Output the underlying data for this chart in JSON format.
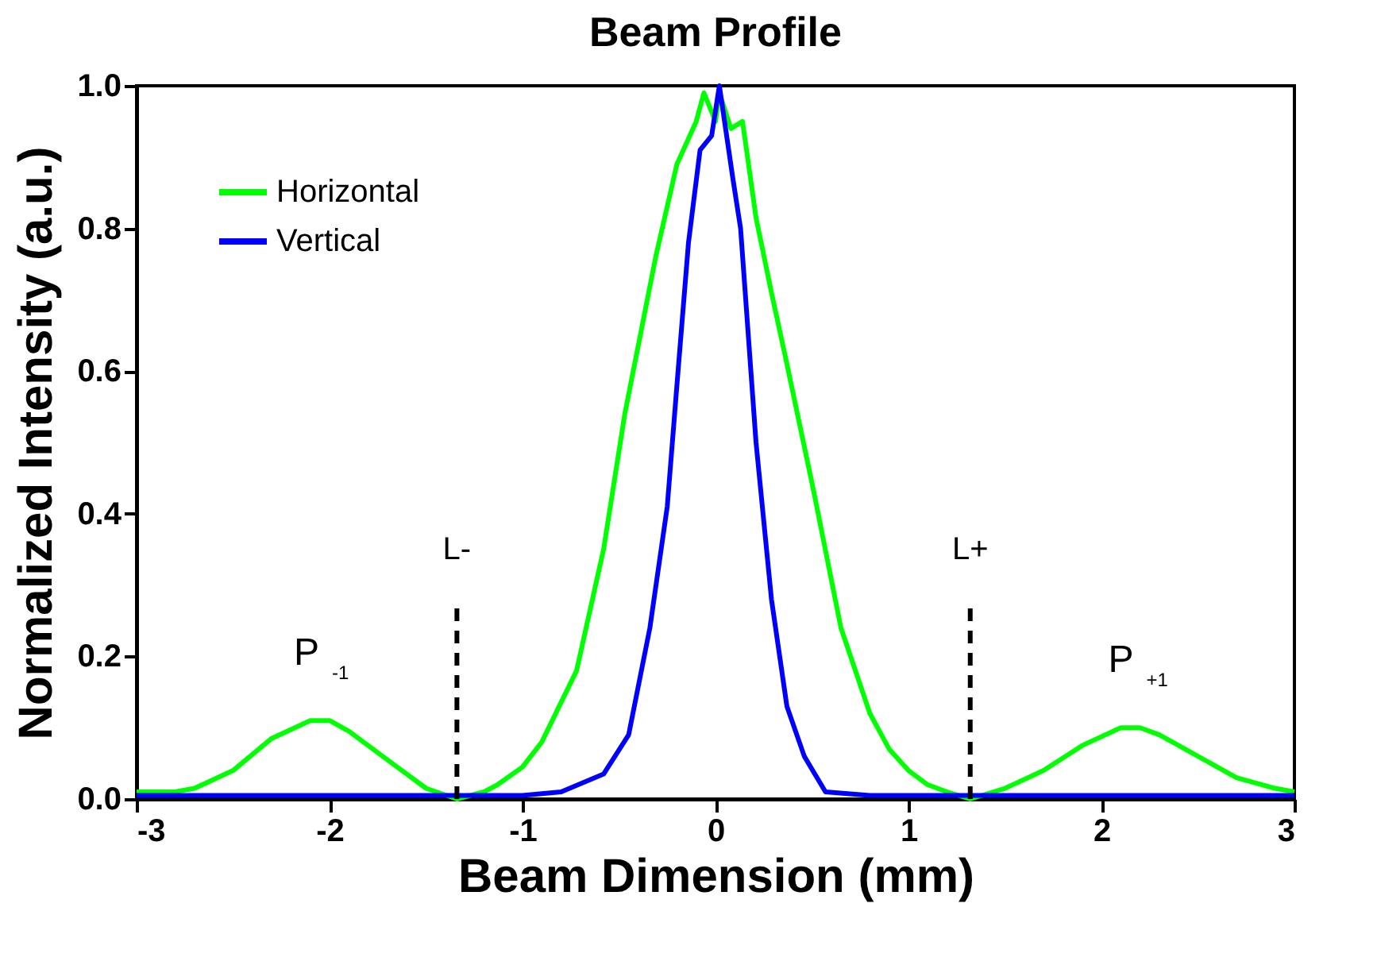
{
  "chart_data": {
    "type": "line",
    "title": "Beam Profile",
    "xlabel": "Beam Dimension (mm)",
    "ylabel": "Normalized Intensity (a.u.)",
    "xlim": [
      -3,
      3
    ],
    "ylim": [
      0,
      1
    ],
    "xticks": [
      -3,
      -2,
      -1,
      0,
      1,
      2,
      3
    ],
    "yticks": [
      {
        "value": 0,
        "label": "0.0"
      },
      0.2,
      0.4,
      0.6,
      0.8,
      {
        "value": 1,
        "label": "1.0"
      }
    ],
    "grid": false,
    "legend": "top left",
    "line_style": "solid",
    "marker": "none",
    "series": [
      {
        "name": "Horizontal",
        "color": "#00ff00",
        "x": [
          -3,
          -2.8,
          -2.7,
          -2.5,
          -2.3,
          -2.1,
          -2.0,
          -1.9,
          -1.7,
          -1.5,
          -1.34,
          -1.2,
          -1.13,
          -1.0,
          -0.9,
          -0.72,
          -0.58,
          -0.47,
          -0.39,
          -0.31,
          -0.2,
          -0.1,
          -0.06,
          0,
          0.02,
          0.08,
          0.14,
          0.21,
          0.29,
          0.37,
          0.51,
          0.65,
          0.8,
          0.9,
          1.0,
          1.1,
          1.2,
          1.32,
          1.5,
          1.7,
          1.9,
          2.1,
          2.2,
          2.3,
          2.5,
          2.7,
          2.9,
          3
        ],
        "values": [
          0.01,
          0.01,
          0.015,
          0.04,
          0.085,
          0.11,
          0.11,
          0.095,
          0.055,
          0.015,
          0.0,
          0.01,
          0.02,
          0.045,
          0.08,
          0.18,
          0.35,
          0.54,
          0.65,
          0.76,
          0.89,
          0.95,
          0.99,
          0.95,
          0.99,
          0.94,
          0.95,
          0.815,
          0.71,
          0.61,
          0.43,
          0.24,
          0.12,
          0.07,
          0.04,
          0.02,
          0.01,
          0.0,
          0.015,
          0.04,
          0.075,
          0.1,
          0.1,
          0.09,
          0.06,
          0.03,
          0.015,
          0.01
        ]
      },
      {
        "name": "Vertical",
        "color": "#0000ff",
        "x": [
          -3,
          -1.0,
          -0.8,
          -0.58,
          -0.45,
          -0.34,
          -0.25,
          -0.2,
          -0.14,
          -0.08,
          -0.02,
          0.02,
          0.09,
          0.13,
          0.21,
          0.29,
          0.37,
          0.46,
          0.57,
          0.8,
          3
        ],
        "values": [
          0.005,
          0.005,
          0.01,
          0.035,
          0.09,
          0.24,
          0.41,
          0.58,
          0.78,
          0.91,
          0.93,
          1.0,
          0.87,
          0.8,
          0.5,
          0.28,
          0.13,
          0.06,
          0.01,
          0.005,
          0.005
        ]
      }
    ],
    "ref_lines": [
      {
        "axis": "x",
        "value": -1.34,
        "label": "L-",
        "color": "#000000",
        "line_style": "dashed"
      },
      {
        "axis": "x",
        "value": 1.32,
        "label": "L+",
        "color": "#000000",
        "line_style": "dashed"
      }
    ],
    "annotations": [
      {
        "text": "P$_{-1}$",
        "x": -2.07,
        "y": 0.11
      },
      {
        "text": "P$_{+1}$",
        "x": 2.15,
        "y": 0.1
      }
    ]
  }
}
